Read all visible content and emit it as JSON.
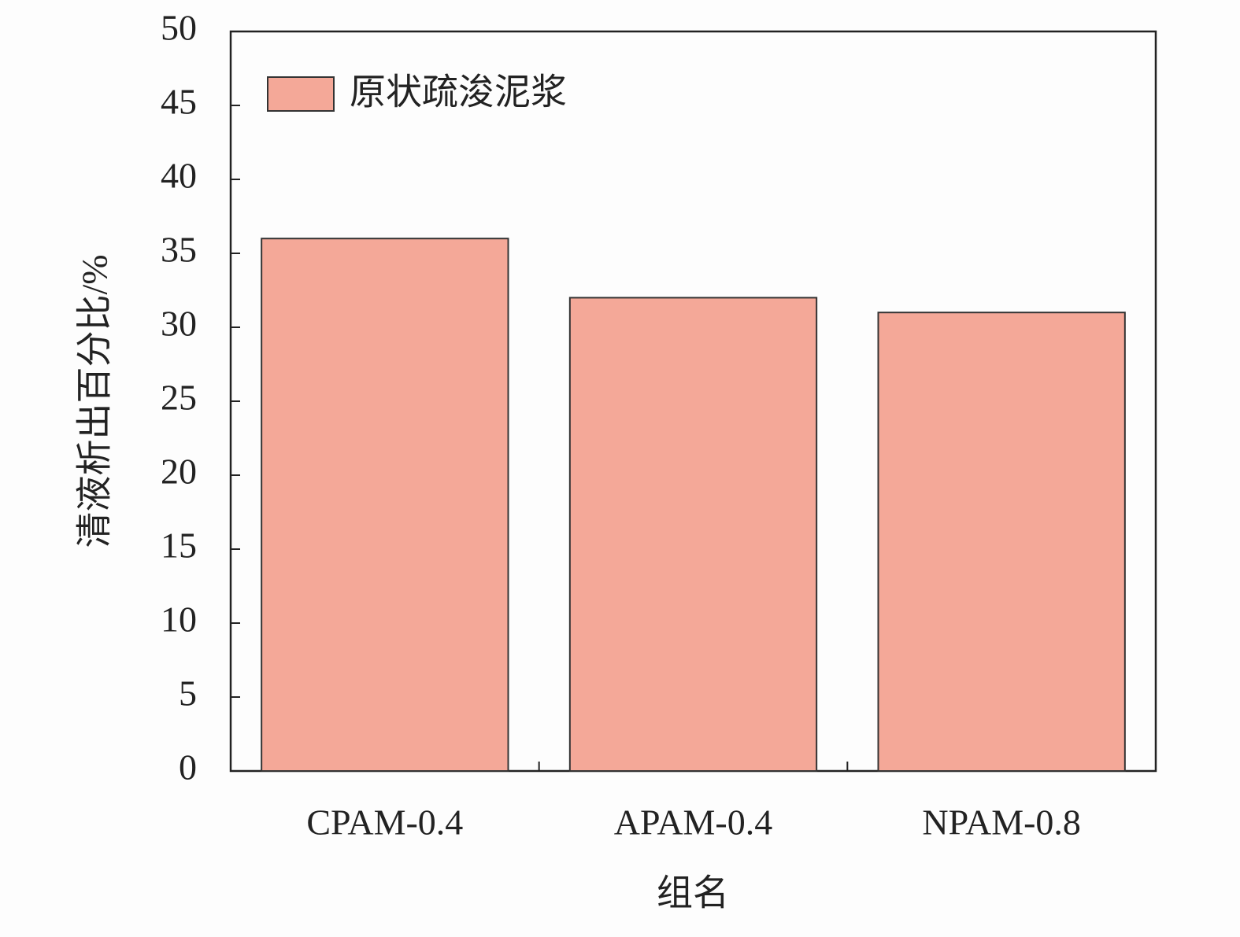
{
  "chart_data": {
    "type": "bar",
    "x_label": "组名",
    "y_label": "清液析出百分比/%",
    "categories": [
      "CPAM-0.4",
      "APAM-0.4",
      "NPAM-0.8"
    ],
    "series": [
      {
        "name": "原状疏浚泥浆",
        "color": "#f4a898",
        "values": [
          36,
          32,
          31
        ]
      }
    ],
    "ylim": [
      0,
      50
    ],
    "yticks": [
      0,
      5,
      10,
      15,
      20,
      25,
      30,
      35,
      40,
      45,
      50
    ],
    "grid": false,
    "legend": "upper left"
  }
}
